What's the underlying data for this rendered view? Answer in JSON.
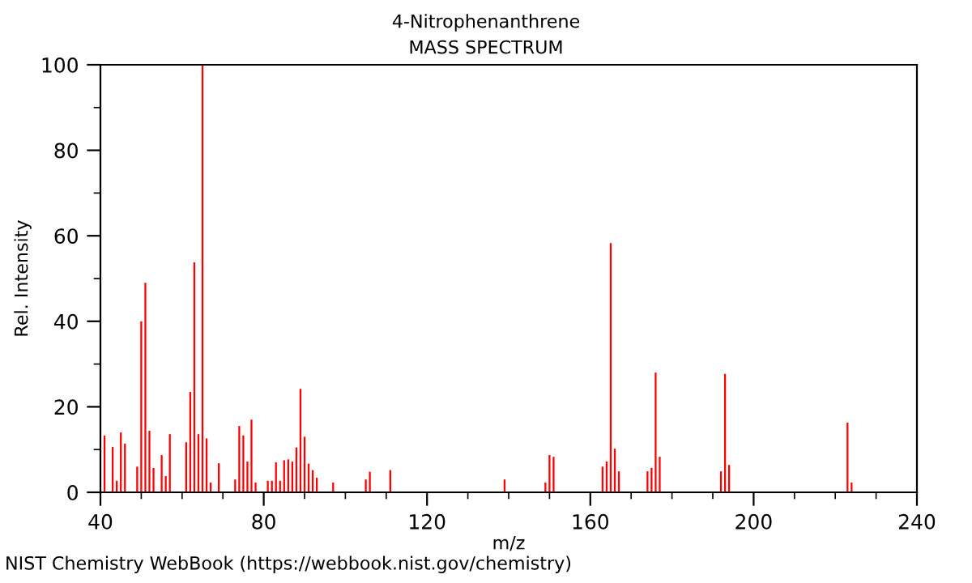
{
  "chart_data": {
    "type": "bar",
    "title": "4-Nitrophenanthrene",
    "subtitle": "MASS SPECTRUM",
    "xlabel": "m/z",
    "ylabel": "Rel. Intensity",
    "annotations": [
      "NIST Chemistry WebBook (https://webbook.nist.gov/chemistry)"
    ],
    "x": [
      41,
      43,
      44,
      45,
      46,
      49,
      50,
      51,
      52,
      53,
      55,
      56,
      57,
      61,
      62,
      63,
      64,
      65,
      66,
      67,
      69,
      73,
      74,
      75,
      76,
      77,
      78,
      81,
      82,
      83,
      84,
      85,
      86,
      87,
      88,
      89,
      90,
      91,
      92,
      93,
      97,
      105,
      106,
      111,
      139,
      149,
      150,
      151,
      163,
      164,
      165,
      166,
      167,
      174,
      175,
      176,
      177,
      192,
      193,
      194,
      223,
      224
    ],
    "values": [
      13.3,
      10.6,
      2.7,
      14,
      11.4,
      6,
      40,
      49,
      14.4,
      5.7,
      8.7,
      3.8,
      13.6,
      11.7,
      23.5,
      53.8,
      13.6,
      100,
      12.6,
      2.3,
      6.8,
      3,
      15.5,
      13.3,
      7.2,
      17,
      2.3,
      2.7,
      2.7,
      7,
      2.7,
      7.5,
      7.7,
      7.2,
      10.5,
      24.2,
      13,
      6.7,
      5.2,
      3.4,
      2.3,
      3,
      4.8,
      5.2,
      3,
      2.3,
      8.7,
      8.3,
      6,
      7.2,
      58.3,
      10.2,
      4.9,
      4.9,
      5.7,
      28,
      8.3,
      4.9,
      27.7,
      6.4,
      16.3,
      2.3
    ],
    "color": "#ff0000",
    "xlim": [
      40,
      240
    ],
    "ylim": [
      0,
      100
    ],
    "xticks": [
      40,
      {
        "value": 50,
        "label": null
      },
      {
        "value": 60,
        "label": null
      },
      {
        "value": 70,
        "label": null
      },
      80,
      {
        "value": 90,
        "label": null
      },
      {
        "value": 100,
        "label": null
      },
      {
        "value": 110,
        "label": null
      },
      120,
      {
        "value": 130,
        "label": null
      },
      {
        "value": 140,
        "label": null
      },
      {
        "value": 150,
        "label": null
      },
      160,
      {
        "value": 170,
        "label": null
      },
      {
        "value": 180,
        "label": null
      },
      {
        "value": 190,
        "label": null
      },
      200,
      {
        "value": 210,
        "label": null
      },
      {
        "value": 220,
        "label": null
      },
      {
        "value": 230,
        "label": null
      },
      240
    ],
    "yticks": [
      0,
      {
        "value": 10,
        "label": null
      },
      20,
      {
        "value": 30,
        "label": null
      },
      40,
      {
        "value": 50,
        "label": null
      },
      60,
      {
        "value": 70,
        "label": null
      },
      80,
      {
        "value": 90,
        "label": null
      },
      100
    ],
    "grid": false,
    "legend": false
  }
}
